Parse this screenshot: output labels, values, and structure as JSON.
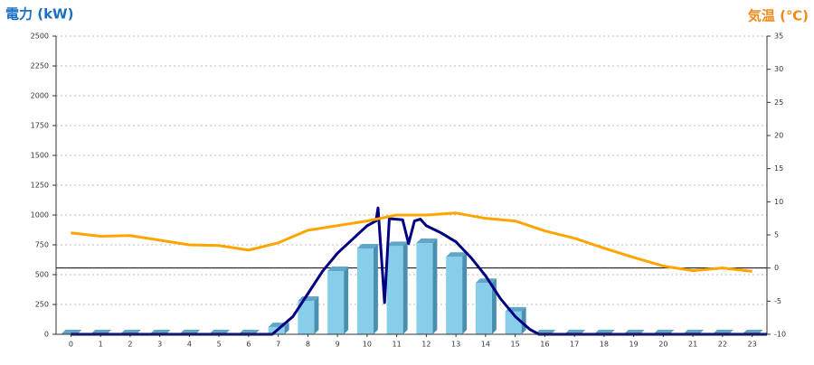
{
  "chart_data": {
    "type": "combo",
    "title": "電力 (kW)",
    "y2_title": "気温 (℃)",
    "categories": [
      "0",
      "1",
      "2",
      "3",
      "4",
      "5",
      "6",
      "7",
      "8",
      "9",
      "10",
      "11",
      "12",
      "13",
      "14",
      "15",
      "16",
      "17",
      "18",
      "19",
      "20",
      "21",
      "22",
      "23"
    ],
    "ylim": [
      0,
      2500
    ],
    "yticks": [
      0,
      250,
      500,
      750,
      1000,
      1250,
      1500,
      1750,
      2000,
      2250,
      2500
    ],
    "y2lim": [
      -10,
      35
    ],
    "y2ticks": [
      -10,
      -5,
      0,
      5,
      10,
      15,
      20,
      25,
      30,
      35
    ],
    "grid": true,
    "series": [
      {
        "type": "bar",
        "color": "#87ceeb",
        "values": [
          0,
          0,
          0,
          0,
          0,
          0,
          0,
          60,
          280,
          530,
          720,
          740,
          765,
          650,
          430,
          190,
          0,
          0,
          0,
          0,
          0,
          0,
          0,
          0
        ]
      },
      {
        "type": "line",
        "color": "#000080",
        "x": [
          0,
          6.8,
          7.5,
          8,
          8.5,
          9,
          9.5,
          10,
          10.3,
          10.37,
          10.59,
          10.75,
          11.2,
          11.4,
          11.6,
          11.8,
          12,
          12.5,
          13,
          13.5,
          14,
          14.5,
          15,
          15.5,
          15.8,
          23.5
        ],
        "values": [
          0,
          0,
          150,
          340,
          530,
          680,
          795,
          910,
          950,
          1060,
          265,
          970,
          960,
          760,
          950,
          965,
          910,
          850,
          775,
          645,
          490,
          300,
          150,
          40,
          0,
          0
        ]
      },
      {
        "type": "line",
        "color": "#ffa500",
        "axis": "y2",
        "values": [
          5.3,
          4.8,
          4.9,
          4.2,
          3.5,
          3.4,
          2.7,
          3.8,
          5.7,
          6.4,
          7.1,
          8.0,
          8.0,
          8.3,
          7.5,
          7.1,
          5.6,
          4.5,
          3.0,
          1.6,
          0.3,
          -0.4,
          0,
          -0.5
        ]
      }
    ]
  }
}
